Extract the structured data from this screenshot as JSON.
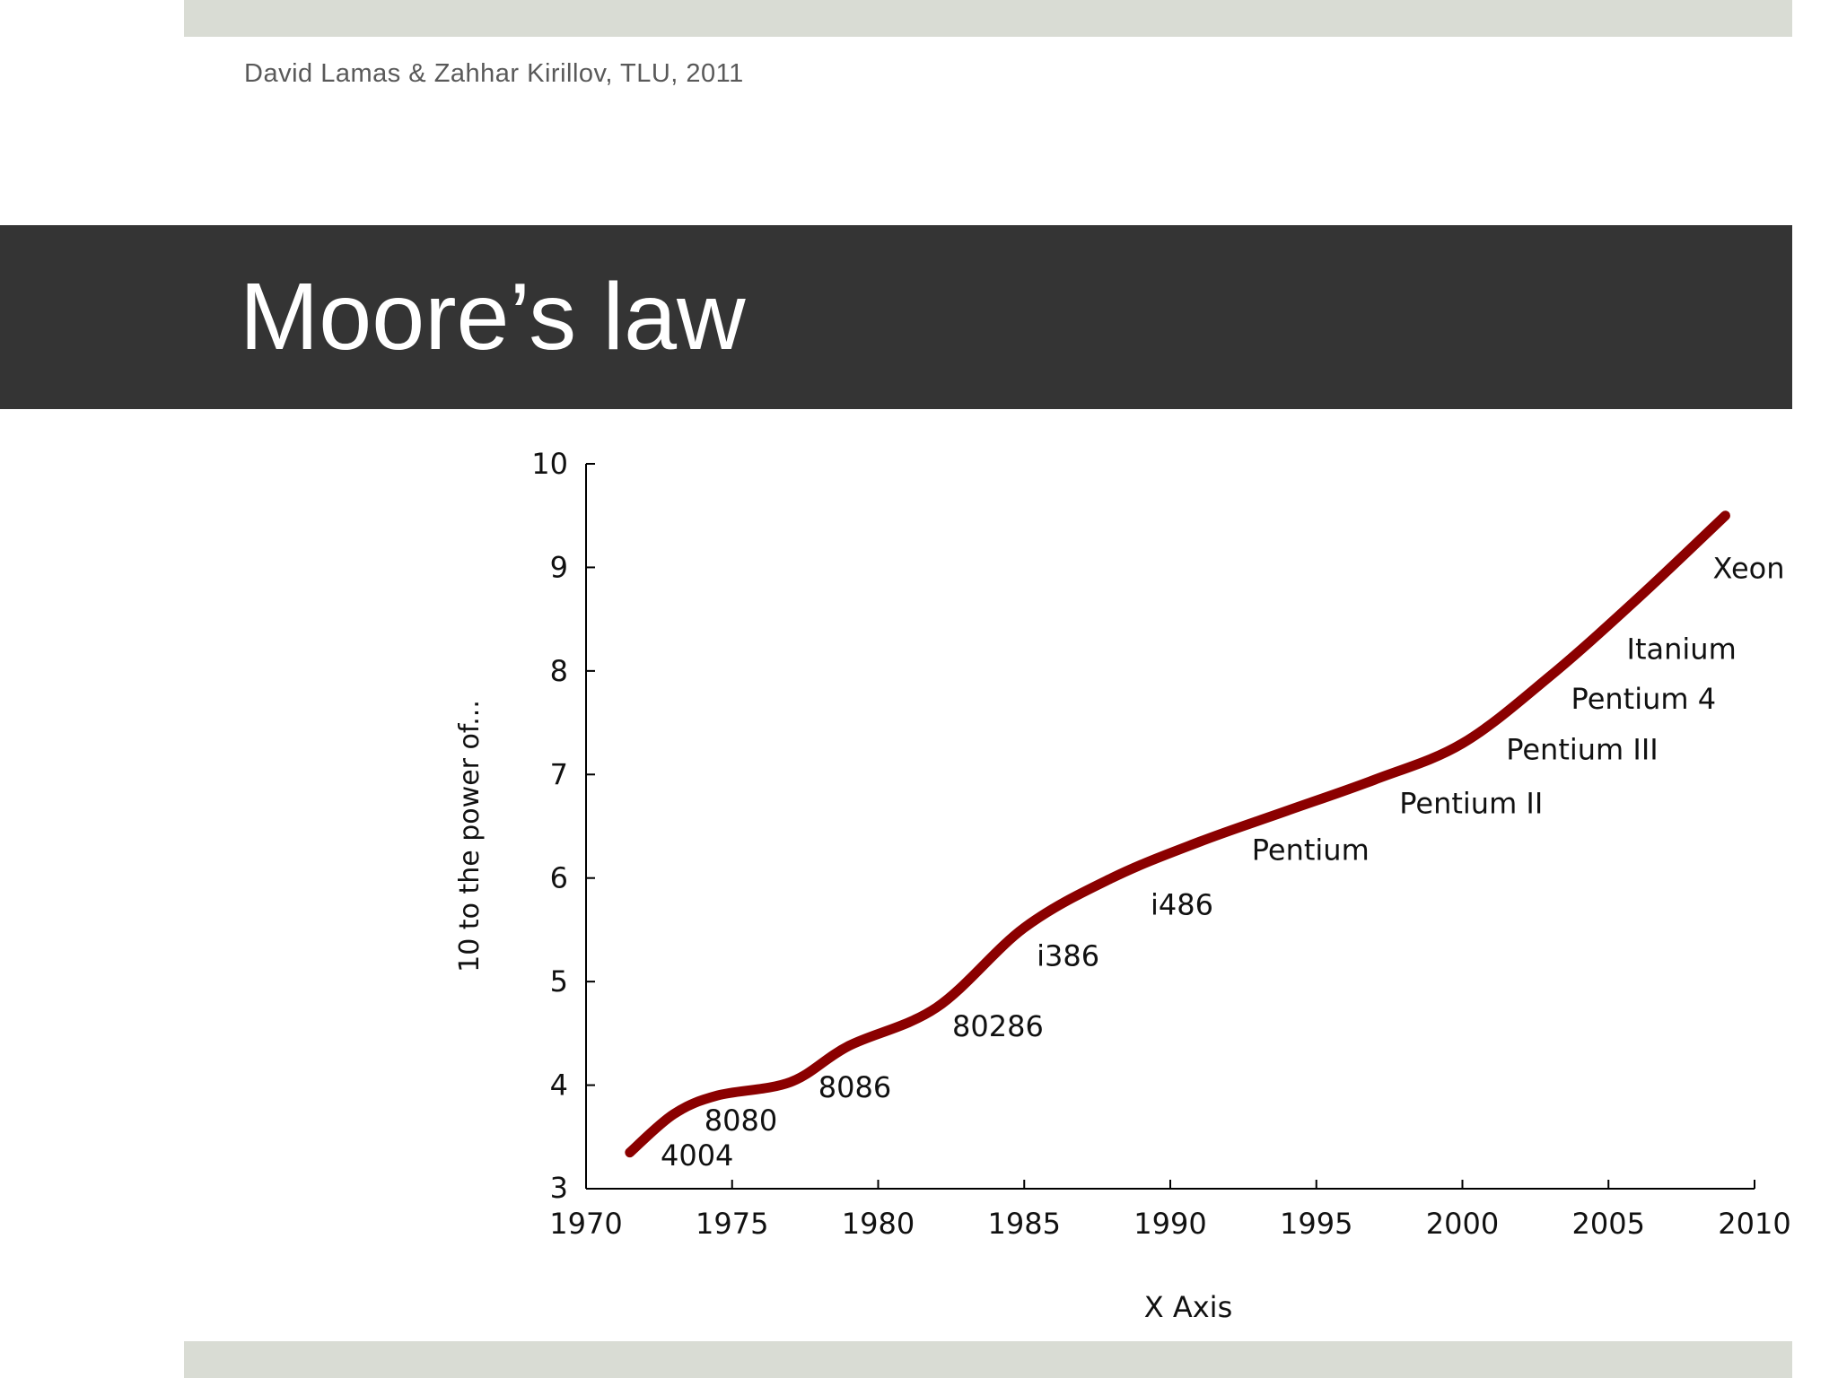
{
  "slide": {
    "author": "David Lamas & Zahhar Kirillov, TLU, 2011",
    "title": "Moore’s law"
  },
  "colors": {
    "band": "#343434",
    "accent_bars": "#d9dcd4",
    "curve": "#8b0000"
  },
  "chart_data": {
    "type": "line",
    "title": "",
    "xlabel": "X Axis",
    "ylabel": "10 to the power of...",
    "xlim": [
      1970,
      2010
    ],
    "ylim": [
      3,
      10
    ],
    "x_ticks": [
      1970,
      1975,
      1980,
      1985,
      1990,
      1995,
      2000,
      2005,
      2010
    ],
    "y_ticks": [
      3,
      4,
      5,
      6,
      7,
      8,
      9,
      10
    ],
    "grid": false,
    "legend": "none",
    "series": [
      {
        "x": [
          1971.5,
          1973,
          1974.5,
          1977,
          1979,
          1982,
          1985,
          1988,
          1991,
          1994,
          1997,
          2000,
          2003,
          2006,
          2009
        ],
        "y": [
          3.35,
          3.72,
          3.9,
          4.03,
          4.38,
          4.75,
          5.52,
          6.0,
          6.35,
          6.65,
          6.95,
          7.3,
          7.95,
          8.7,
          9.5
        ]
      }
    ],
    "annotations": [
      {
        "text": "4004",
        "x": 1973.8,
        "y": 3.32
      },
      {
        "text": "8080",
        "x": 1975.3,
        "y": 3.66
      },
      {
        "text": "8086",
        "x": 1979.2,
        "y": 3.98
      },
      {
        "text": "80286",
        "x": 1984.1,
        "y": 4.57
      },
      {
        "text": "i386",
        "x": 1986.5,
        "y": 5.25
      },
      {
        "text": "i486",
        "x": 1990.4,
        "y": 5.74
      },
      {
        "text": "Pentium",
        "x": 1994.8,
        "y": 6.27
      },
      {
        "text": "Pentium II",
        "x": 2000.3,
        "y": 6.72
      },
      {
        "text": "Pentium III",
        "x": 2004.1,
        "y": 7.24
      },
      {
        "text": "Pentium 4",
        "x": 2006.2,
        "y": 7.73
      },
      {
        "text": "Itanium",
        "x": 2007.5,
        "y": 8.21
      },
      {
        "text": "Xeon",
        "x": 2009.8,
        "y": 8.99
      }
    ]
  }
}
